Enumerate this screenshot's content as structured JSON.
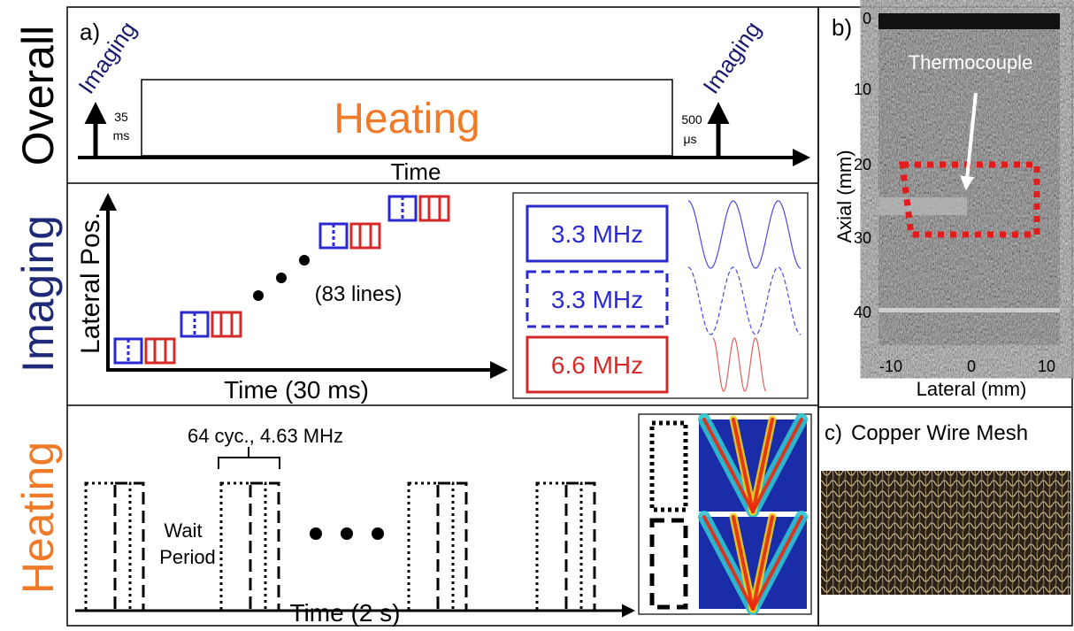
{
  "rows": {
    "overall": "Overall",
    "imaging": "Imaging",
    "heating": "Heating"
  },
  "panel_a": {
    "label": "a)",
    "imaging_left": "Imaging",
    "imaging_right": "Imaging",
    "heating": "Heating",
    "left_duration": {
      "value": "35",
      "unit": "ms"
    },
    "right_duration": {
      "value": "500",
      "unit": "μs"
    },
    "axis": "Time"
  },
  "imaging": {
    "y_axis": "Lateral Pos.",
    "x_axis": "Time (30 ms)",
    "lines_note": "(83 lines)",
    "legend": [
      "3.3 MHz",
      "3.3 MHz",
      "6.6 MHz"
    ]
  },
  "heating": {
    "pulse_note": "64 cyc., 4.63 MHz",
    "wait": "Wait",
    "period": "Period",
    "x_axis": "Time (2 s)"
  },
  "panel_b": {
    "label": "b)",
    "annotation": "Thermocouple",
    "axial_ticks": [
      0,
      10,
      20,
      30,
      40
    ],
    "axial_label": "Axial (mm)",
    "lateral_ticks": [
      -10,
      0,
      10
    ],
    "lateral_label": "Lateral (mm)"
  },
  "panel_c": {
    "label": "c)",
    "title": "Copper Wire Mesh"
  }
}
